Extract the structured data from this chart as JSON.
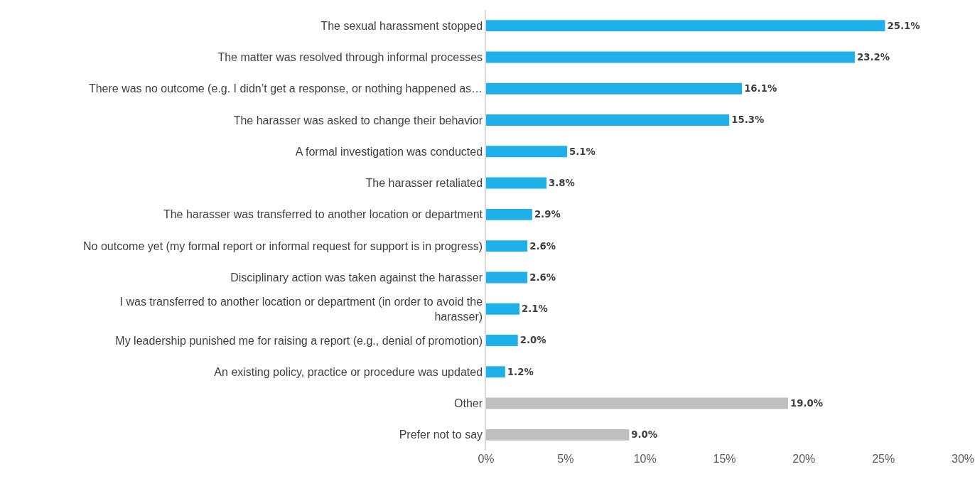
{
  "chart_data": {
    "type": "bar",
    "orientation": "horizontal",
    "categories": [
      "The sexual harassment stopped",
      "The matter was resolved through informal processes",
      "There was no outcome (e.g. I didn’t get a response, or nothing happened as…",
      "The harasser was asked to change their behavior",
      "A formal investigation was conducted",
      "The harasser retaliated",
      "The harasser was transferred to another location or department",
      "No outcome yet (my formal report or informal request for support is in progress)",
      "Disciplinary action was taken against the harasser",
      "I was transferred to another location or department (in order to avoid the\nharasser)",
      "My leadership punished me for raising a report (e.g., denial of promotion)",
      "An existing policy, practice or procedure was updated",
      "Other",
      "Prefer not to say"
    ],
    "values": [
      25.1,
      23.2,
      16.1,
      15.3,
      5.1,
      3.8,
      2.9,
      2.6,
      2.6,
      2.1,
      2.0,
      1.2,
      19.0,
      9.0
    ],
    "value_labels": [
      "25.1%",
      "23.2%",
      "16.1%",
      "15.3%",
      "5.1%",
      "3.8%",
      "2.9%",
      "2.6%",
      "2.6%",
      "2.1%",
      "2.0%",
      "1.2%",
      "19.0%",
      "9.0%"
    ],
    "colors": [
      "#1fb0ea",
      "#1fb0ea",
      "#1fb0ea",
      "#1fb0ea",
      "#1fb0ea",
      "#1fb0ea",
      "#1fb0ea",
      "#1fb0ea",
      "#1fb0ea",
      "#1fb0ea",
      "#1fb0ea",
      "#1fb0ea",
      "#bfbfbf",
      "#bfbfbf"
    ],
    "xlim": [
      0,
      30
    ],
    "xticks": [
      {
        "value": 0,
        "label": "0%"
      },
      {
        "value": 5,
        "label": "5%"
      },
      {
        "value": 10,
        "label": "10%"
      },
      {
        "value": 15,
        "label": "15%"
      },
      {
        "value": 20,
        "label": "20%"
      },
      {
        "value": 25,
        "label": "25%"
      },
      {
        "value": 30,
        "label": "30%"
      }
    ],
    "grid": false
  }
}
